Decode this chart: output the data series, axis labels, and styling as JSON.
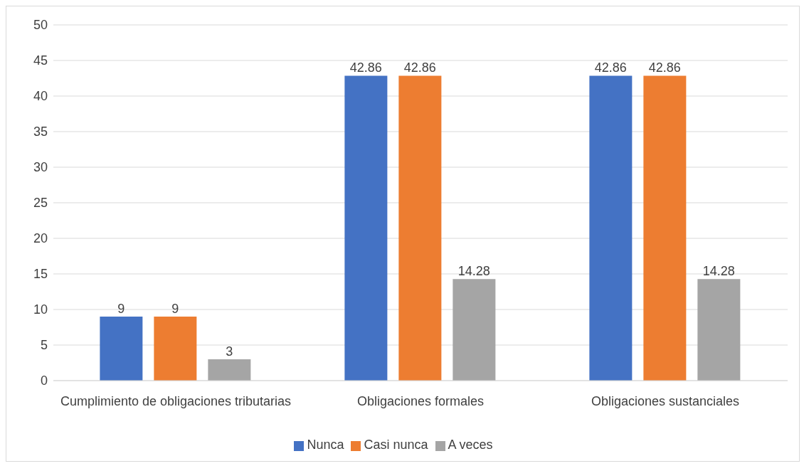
{
  "chart_data": {
    "type": "bar",
    "categories": [
      "Cumplimiento de obligaciones tributarias",
      "Obligaciones formales",
      "Obligaciones sustanciales"
    ],
    "series": [
      {
        "name": "Nunca",
        "color": "#4472c4",
        "values": [
          9,
          42.86,
          42.86
        ]
      },
      {
        "name": "Casi nunca",
        "color": "#ed7d31",
        "values": [
          9,
          42.86,
          42.86
        ]
      },
      {
        "name": "A veces",
        "color": "#a5a5a5",
        "values": [
          3,
          14.28,
          14.28
        ]
      }
    ],
    "ylim": [
      0,
      50
    ],
    "yticks": [
      0,
      5,
      10,
      15,
      20,
      25,
      30,
      35,
      40,
      45,
      50
    ],
    "grid": "y",
    "legend": "bottom",
    "data_labels": true
  }
}
